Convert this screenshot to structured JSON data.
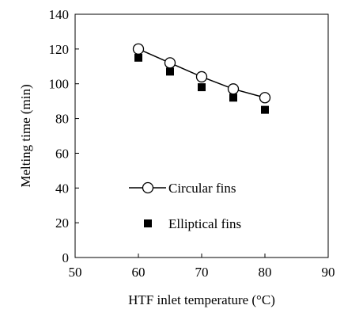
{
  "chart_data": {
    "type": "scatter",
    "title": "",
    "xlabel": "HTF inlet temperature (°C)",
    "ylabel": "Melting time (min)",
    "xlim": [
      50,
      90
    ],
    "ylim": [
      0,
      140
    ],
    "xticks": [
      50,
      60,
      70,
      80,
      90
    ],
    "yticks": [
      0,
      20,
      40,
      60,
      80,
      100,
      120,
      140
    ],
    "grid": false,
    "legend_position": "bottom-right",
    "series": [
      {
        "name": "Circular fins",
        "marker": "open-circle",
        "line": true,
        "color": "#000000",
        "x": [
          60,
          65,
          70,
          75,
          80
        ],
        "y": [
          120,
          112,
          104,
          97,
          92
        ]
      },
      {
        "name": "Elliptical fins",
        "marker": "filled-square",
        "line": false,
        "color": "#000000",
        "x": [
          60,
          65,
          70,
          75,
          80
        ],
        "y": [
          115,
          107,
          98,
          92,
          85
        ]
      }
    ]
  }
}
